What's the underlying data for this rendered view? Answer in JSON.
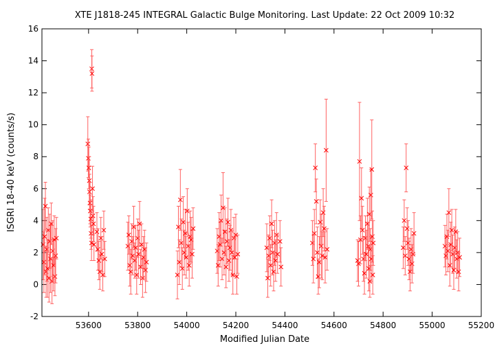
{
  "chart_data": {
    "type": "scatter",
    "title": "XTE J1818-245   INTEGRAL Galactic Bulge Monitoring.  Last Update: 22 Oct 2009 10:32",
    "xlabel": "Modified Julian Date",
    "ylabel": "ISGRI 18-40 keV (counts/s)",
    "xlim": [
      53410,
      55200
    ],
    "ylim": [
      -2,
      16
    ],
    "xticks": [
      53600,
      53800,
      54000,
      54200,
      54400,
      54600,
      54800,
      55000,
      55200
    ],
    "yticks": [
      -2,
      0,
      2,
      4,
      6,
      8,
      10,
      12,
      14,
      16
    ],
    "grid": false,
    "legend": "none",
    "marker": "x",
    "color": "#ff0000",
    "errorbar_color": "#ff6060",
    "series": [
      {
        "points": [
          {
            "x": 53415,
            "y": 2.5,
            "err": 2.2
          },
          {
            "x": 53418,
            "y": 1.4,
            "err": 1.9
          },
          {
            "x": 53421,
            "y": 3.0,
            "err": 2.4
          },
          {
            "x": 53424,
            "y": 4.9,
            "err": 1.5
          },
          {
            "x": 53427,
            "y": 0.8,
            "err": 1.6
          },
          {
            "x": 53430,
            "y": 2.2,
            "err": 2.0
          },
          {
            "x": 53433,
            "y": 1.0,
            "err": 1.8
          },
          {
            "x": 53436,
            "y": 3.4,
            "err": 1.4
          },
          {
            "x": 53439,
            "y": 0.4,
            "err": 1.5
          },
          {
            "x": 53442,
            "y": 2.7,
            "err": 1.7
          },
          {
            "x": 53445,
            "y": 1.6,
            "err": 2.1
          },
          {
            "x": 53448,
            "y": 3.8,
            "err": 1.3
          },
          {
            "x": 53451,
            "y": 0.2,
            "err": 1.4
          },
          {
            "x": 53454,
            "y": 2.1,
            "err": 1.9
          },
          {
            "x": 53457,
            "y": 1.2,
            "err": 1.6
          },
          {
            "x": 53460,
            "y": 2.8,
            "err": 1.5
          },
          {
            "x": 53463,
            "y": 0.5,
            "err": 1.2
          },
          {
            "x": 53466,
            "y": 1.8,
            "err": 1.7
          },
          {
            "x": 53469,
            "y": 2.9,
            "err": 1.3
          },
          {
            "x": 53597,
            "y": 8.8,
            "err": 1.7
          },
          {
            "x": 53599,
            "y": 7.9,
            "err": 1.2
          },
          {
            "x": 53601,
            "y": 7.3,
            "err": 1.3
          },
          {
            "x": 53603,
            "y": 6.5,
            "err": 1.5
          },
          {
            "x": 53604,
            "y": 5.8,
            "err": 1.1
          },
          {
            "x": 53606,
            "y": 5.1,
            "err": 1.3
          },
          {
            "x": 53607,
            "y": 4.6,
            "err": 1.0
          },
          {
            "x": 53609,
            "y": 4.1,
            "err": 1.2
          },
          {
            "x": 53610,
            "y": 3.2,
            "err": 1.0
          },
          {
            "x": 53612,
            "y": 2.6,
            "err": 1.1
          },
          {
            "x": 53613,
            "y": 13.5,
            "err": 1.2
          },
          {
            "x": 53614,
            "y": 13.2,
            "err": 1.1
          },
          {
            "x": 53616,
            "y": 6.0,
            "err": 1.4
          },
          {
            "x": 53618,
            "y": 4.3,
            "err": 1.2
          },
          {
            "x": 53620,
            "y": 3.8,
            "err": 1.1
          },
          {
            "x": 53622,
            "y": 2.5,
            "err": 1.0
          },
          {
            "x": 53634,
            "y": 3.3,
            "err": 1.2
          },
          {
            "x": 53638,
            "y": 2.2,
            "err": 1.3
          },
          {
            "x": 53642,
            "y": 1.5,
            "err": 1.2
          },
          {
            "x": 53646,
            "y": 0.8,
            "err": 1.1
          },
          {
            "x": 53650,
            "y": 2.9,
            "err": 1.3
          },
          {
            "x": 53654,
            "y": 1.9,
            "err": 1.1
          },
          {
            "x": 53658,
            "y": 0.6,
            "err": 1.0
          },
          {
            "x": 53662,
            "y": 3.4,
            "err": 1.2
          },
          {
            "x": 53666,
            "y": 1.6,
            "err": 1.1
          },
          {
            "x": 53760,
            "y": 2.4,
            "err": 1.5
          },
          {
            "x": 53764,
            "y": 3.1,
            "err": 1.2
          },
          {
            "x": 53768,
            "y": 1.2,
            "err": 1.3
          },
          {
            "x": 53772,
            "y": 0.8,
            "err": 1.4
          },
          {
            "x": 53776,
            "y": 2.7,
            "err": 1.1
          },
          {
            "x": 53780,
            "y": 1.8,
            "err": 1.2
          },
          {
            "x": 53784,
            "y": 3.6,
            "err": 1.3
          },
          {
            "x": 53788,
            "y": 1.5,
            "err": 1.1
          },
          {
            "x": 53792,
            "y": 2.3,
            "err": 1.4
          },
          {
            "x": 53796,
            "y": 0.6,
            "err": 1.2
          },
          {
            "x": 53800,
            "y": 2.9,
            "err": 1.2
          },
          {
            "x": 53804,
            "y": 1.9,
            "err": 1.5
          },
          {
            "x": 53808,
            "y": 3.8,
            "err": 1.4
          },
          {
            "x": 53812,
            "y": 1.1,
            "err": 1.1
          },
          {
            "x": 53816,
            "y": 2.5,
            "err": 1.3
          },
          {
            "x": 53820,
            "y": 0.4,
            "err": 1.2
          },
          {
            "x": 53824,
            "y": 1.7,
            "err": 1.3
          },
          {
            "x": 53828,
            "y": 2.2,
            "err": 1.2
          },
          {
            "x": 53832,
            "y": 0.9,
            "err": 1.4
          },
          {
            "x": 53836,
            "y": 1.4,
            "err": 1.2
          },
          {
            "x": 53962,
            "y": 0.6,
            "err": 1.5
          },
          {
            "x": 53966,
            "y": 3.6,
            "err": 1.3
          },
          {
            "x": 53970,
            "y": 1.4,
            "err": 1.4
          },
          {
            "x": 53974,
            "y": 5.3,
            "err": 1.9
          },
          {
            "x": 53978,
            "y": 2.6,
            "err": 1.5
          },
          {
            "x": 53982,
            "y": 1.0,
            "err": 1.3
          },
          {
            "x": 53986,
            "y": 3.9,
            "err": 1.6
          },
          {
            "x": 53990,
            "y": 2.0,
            "err": 1.4
          },
          {
            "x": 53994,
            "y": 3.2,
            "err": 1.5
          },
          {
            "x": 53998,
            "y": 1.7,
            "err": 1.3
          },
          {
            "x": 54002,
            "y": 4.6,
            "err": 1.4
          },
          {
            "x": 54006,
            "y": 2.4,
            "err": 1.5
          },
          {
            "x": 54010,
            "y": 1.2,
            "err": 1.3
          },
          {
            "x": 54014,
            "y": 3.0,
            "err": 1.6
          },
          {
            "x": 54018,
            "y": 2.8,
            "err": 1.4
          },
          {
            "x": 54022,
            "y": 1.9,
            "err": 1.5
          },
          {
            "x": 54026,
            "y": 3.5,
            "err": 1.3
          },
          {
            "x": 54124,
            "y": 2.1,
            "err": 1.4
          },
          {
            "x": 54128,
            "y": 1.2,
            "err": 1.3
          },
          {
            "x": 54132,
            "y": 3.0,
            "err": 1.5
          },
          {
            "x": 54136,
            "y": 2.5,
            "err": 1.4
          },
          {
            "x": 54140,
            "y": 4.0,
            "err": 1.6
          },
          {
            "x": 54144,
            "y": 1.6,
            "err": 1.3
          },
          {
            "x": 54148,
            "y": 4.8,
            "err": 2.2
          },
          {
            "x": 54152,
            "y": 2.0,
            "err": 1.4
          },
          {
            "x": 54156,
            "y": 3.3,
            "err": 1.5
          },
          {
            "x": 54160,
            "y": 1.1,
            "err": 1.3
          },
          {
            "x": 54164,
            "y": 2.7,
            "err": 1.4
          },
          {
            "x": 54168,
            "y": 3.9,
            "err": 1.5
          },
          {
            "x": 54172,
            "y": 1.5,
            "err": 1.3
          },
          {
            "x": 54176,
            "y": 2.3,
            "err": 1.4
          },
          {
            "x": 54180,
            "y": 3.4,
            "err": 1.3
          },
          {
            "x": 54184,
            "y": 2.0,
            "err": 1.4
          },
          {
            "x": 54188,
            "y": 0.6,
            "err": 1.2
          },
          {
            "x": 54192,
            "y": 2.9,
            "err": 1.3
          },
          {
            "x": 54196,
            "y": 1.7,
            "err": 1.2
          },
          {
            "x": 54200,
            "y": 3.1,
            "err": 1.3
          },
          {
            "x": 54204,
            "y": 0.5,
            "err": 1.1
          },
          {
            "x": 54208,
            "y": 1.9,
            "err": 1.2
          },
          {
            "x": 54326,
            "y": 2.3,
            "err": 1.5
          },
          {
            "x": 54330,
            "y": 0.4,
            "err": 1.2
          },
          {
            "x": 54334,
            "y": 1.8,
            "err": 1.3
          },
          {
            "x": 54338,
            "y": 2.9,
            "err": 1.4
          },
          {
            "x": 54342,
            "y": 1.2,
            "err": 1.3
          },
          {
            "x": 54346,
            "y": 3.8,
            "err": 1.5
          },
          {
            "x": 54350,
            "y": 2.0,
            "err": 1.4
          },
          {
            "x": 54354,
            "y": 0.8,
            "err": 1.2
          },
          {
            "x": 54358,
            "y": 2.6,
            "err": 1.4
          },
          {
            "x": 54362,
            "y": 1.5,
            "err": 1.3
          },
          {
            "x": 54366,
            "y": 3.1,
            "err": 1.4
          },
          {
            "x": 54370,
            "y": 1.9,
            "err": 1.2
          },
          {
            "x": 54380,
            "y": 2.7,
            "err": 1.3
          },
          {
            "x": 54384,
            "y": 1.1,
            "err": 1.2
          },
          {
            "x": 54512,
            "y": 2.6,
            "err": 1.4
          },
          {
            "x": 54516,
            "y": 1.6,
            "err": 1.5
          },
          {
            "x": 54520,
            "y": 3.2,
            "err": 1.5
          },
          {
            "x": 54524,
            "y": 7.3,
            "err": 1.5
          },
          {
            "x": 54528,
            "y": 5.2,
            "err": 1.4
          },
          {
            "x": 54532,
            "y": 2.0,
            "err": 1.6
          },
          {
            "x": 54536,
            "y": 0.5,
            "err": 1.1
          },
          {
            "x": 54540,
            "y": 1.4,
            "err": 1.6
          },
          {
            "x": 54544,
            "y": 3.9,
            "err": 1.4
          },
          {
            "x": 54548,
            "y": 2.4,
            "err": 2.0
          },
          {
            "x": 54552,
            "y": 1.8,
            "err": 1.5
          },
          {
            "x": 54556,
            "y": 4.5,
            "err": 1.5
          },
          {
            "x": 54560,
            "y": 3.5,
            "err": 1.4
          },
          {
            "x": 54564,
            "y": 1.7,
            "err": 1.6
          },
          {
            "x": 54568,
            "y": 8.4,
            "err": 3.2
          },
          {
            "x": 54572,
            "y": 2.2,
            "err": 1.3
          },
          {
            "x": 54696,
            "y": 1.5,
            "err": 1.3
          },
          {
            "x": 54700,
            "y": 1.3,
            "err": 1.4
          },
          {
            "x": 54704,
            "y": 7.7,
            "err": 3.7
          },
          {
            "x": 54708,
            "y": 2.8,
            "err": 1.5
          },
          {
            "x": 54712,
            "y": 5.4,
            "err": 1.9
          },
          {
            "x": 54716,
            "y": 3.4,
            "err": 1.5
          },
          {
            "x": 54720,
            "y": 1.6,
            "err": 1.4
          },
          {
            "x": 54724,
            "y": 0.7,
            "err": 1.3
          },
          {
            "x": 54728,
            "y": 2.9,
            "err": 1.4
          },
          {
            "x": 54732,
            "y": 1.9,
            "err": 1.5
          },
          {
            "x": 54736,
            "y": 3.8,
            "err": 1.6
          },
          {
            "x": 54740,
            "y": 2.4,
            "err": 1.5
          },
          {
            "x": 54742,
            "y": 1.0,
            "err": 1.4
          },
          {
            "x": 54744,
            "y": 4.4,
            "err": 1.7
          },
          {
            "x": 54746,
            "y": 0.2,
            "err": 1.0
          },
          {
            "x": 54748,
            "y": 2.2,
            "err": 1.3
          },
          {
            "x": 54750,
            "y": 5.6,
            "err": 1.6
          },
          {
            "x": 54752,
            "y": 1.6,
            "err": 1.4
          },
          {
            "x": 54754,
            "y": 7.2,
            "err": 3.1
          },
          {
            "x": 54756,
            "y": 3.0,
            "err": 1.6
          },
          {
            "x": 54758,
            "y": 0.6,
            "err": 1.2
          },
          {
            "x": 54760,
            "y": 2.6,
            "err": 1.4
          },
          {
            "x": 54882,
            "y": 2.3,
            "err": 1.3
          },
          {
            "x": 54886,
            "y": 4.0,
            "err": 1.3
          },
          {
            "x": 54890,
            "y": 1.8,
            "err": 1.2
          },
          {
            "x": 54894,
            "y": 7.3,
            "err": 1.5
          },
          {
            "x": 54898,
            "y": 3.5,
            "err": 1.3
          },
          {
            "x": 54902,
            "y": 2.6,
            "err": 1.4
          },
          {
            "x": 54906,
            "y": 1.6,
            "err": 1.3
          },
          {
            "x": 54910,
            "y": 0.8,
            "err": 1.2
          },
          {
            "x": 54914,
            "y": 2.2,
            "err": 1.3
          },
          {
            "x": 54918,
            "y": 1.3,
            "err": 1.2
          },
          {
            "x": 54922,
            "y": 1.9,
            "err": 1.2
          },
          {
            "x": 54926,
            "y": 3.2,
            "err": 1.3
          },
          {
            "x": 55052,
            "y": 2.4,
            "err": 1.3
          },
          {
            "x": 55056,
            "y": 1.8,
            "err": 1.2
          },
          {
            "x": 55060,
            "y": 3.0,
            "err": 1.4
          },
          {
            "x": 55064,
            "y": 2.1,
            "err": 1.3
          },
          {
            "x": 55068,
            "y": 4.5,
            "err": 1.5
          },
          {
            "x": 55072,
            "y": 1.2,
            "err": 1.3
          },
          {
            "x": 55076,
            "y": 2.5,
            "err": 1.4
          },
          {
            "x": 55080,
            "y": 3.4,
            "err": 1.3
          },
          {
            "x": 55084,
            "y": 1.9,
            "err": 1.2
          },
          {
            "x": 55088,
            "y": 0.9,
            "err": 1.2
          },
          {
            "x": 55092,
            "y": 2.3,
            "err": 1.3
          },
          {
            "x": 55096,
            "y": 3.3,
            "err": 1.4
          },
          {
            "x": 55100,
            "y": 1.6,
            "err": 1.2
          },
          {
            "x": 55104,
            "y": 2.0,
            "err": 1.3
          },
          {
            "x": 55108,
            "y": 0.8,
            "err": 1.2
          },
          {
            "x": 55112,
            "y": 1.7,
            "err": 1.2
          }
        ]
      }
    ]
  }
}
